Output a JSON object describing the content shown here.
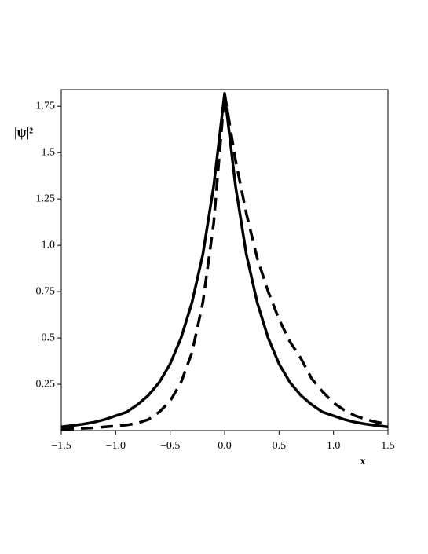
{
  "chart_data": {
    "type": "line",
    "xlabel": "x",
    "ylabel": "|ψ|²",
    "x": [
      -1.5,
      -1.4,
      -1.3,
      -1.2,
      -1.1,
      -1.0,
      -0.9,
      -0.8,
      -0.7,
      -0.6,
      -0.5,
      -0.4,
      -0.3,
      -0.2,
      -0.1,
      0,
      0.1,
      0.2,
      0.3,
      0.4,
      0.5,
      0.6,
      0.7,
      0.8,
      0.9,
      1.0,
      1.1,
      1.2,
      1.3,
      1.4,
      1.5
    ],
    "series": [
      {
        "color": "#000000",
        "dash": false,
        "values": [
          0.02,
          0.027,
          0.035,
          0.045,
          0.06,
          0.08,
          0.1,
          0.14,
          0.19,
          0.26,
          0.36,
          0.5,
          0.69,
          0.95,
          1.32,
          1.82,
          1.32,
          0.95,
          0.69,
          0.5,
          0.36,
          0.26,
          0.19,
          0.14,
          0.1,
          0.08,
          0.06,
          0.045,
          0.035,
          0.027,
          0.02
        ]
      },
      {
        "color": "#000000",
        "dash": true,
        "values": [
          0.008,
          0.01,
          0.012,
          0.015,
          0.02,
          0.025,
          0.03,
          0.04,
          0.06,
          0.1,
          0.16,
          0.26,
          0.42,
          0.69,
          1.12,
          1.82,
          1.46,
          1.17,
          0.93,
          0.75,
          0.6,
          0.48,
          0.39,
          0.28,
          0.21,
          0.15,
          0.11,
          0.08,
          0.06,
          0.045,
          0.035
        ]
      }
    ],
    "xlim": [
      -1.5,
      1.5
    ],
    "xticks": [
      {
        "value": -1.5,
        "label": "−1.5"
      },
      {
        "value": -1.0,
        "label": "−1.0"
      },
      {
        "value": -0.5,
        "label": "−0.5"
      },
      {
        "value": 0,
        "label": "0.0"
      },
      0.5,
      {
        "value": 1.0,
        "label": "1.0"
      },
      1.5
    ],
    "ylim": [
      0,
      1.84
    ],
    "yticks": [
      0.25,
      0.5,
      0.75,
      {
        "value": 1.0,
        "label": "1.0"
      },
      1.25,
      1.5,
      1.75
    ]
  }
}
